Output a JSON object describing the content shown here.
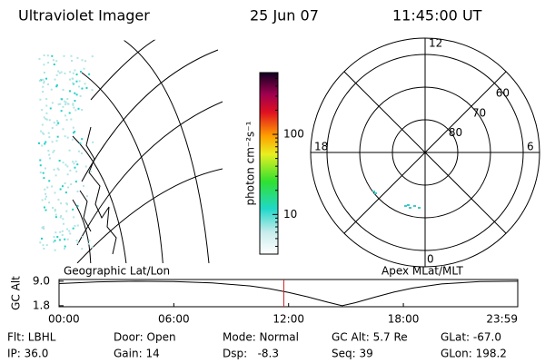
{
  "header": {
    "title": "Ultraviolet Imager",
    "date": "25 Jun 07",
    "time": "11:45:00 UT"
  },
  "image_panel": {
    "label": "Geographic Lat/Lon"
  },
  "colorbar": {
    "label": "photon cm⁻²s⁻¹",
    "scale": "log",
    "lim": [
      3.2,
      590
    ],
    "ticks": [
      10,
      100
    ]
  },
  "polar": {
    "label": "Apex MLat/MLT",
    "hour_labels": {
      "top": "12",
      "left": "18",
      "right": "6",
      "bottom": "0"
    },
    "rings": [
      80,
      70,
      60
    ]
  },
  "chart_data": {
    "type": "line",
    "y_label": "GC Alt",
    "x": [
      0,
      2,
      4,
      6,
      8,
      10,
      11,
      12,
      13,
      14,
      14.8,
      15.5,
      16.5,
      17.5,
      18.5,
      20,
      22,
      23.98
    ],
    "series": [
      {
        "name": "GC Alt",
        "color": "#000000",
        "values": [
          8.3,
          8.8,
          9.0,
          8.9,
          8.5,
          7.6,
          6.8,
          5.7,
          4.4,
          2.9,
          1.8,
          2.7,
          4.3,
          5.8,
          7.0,
          8.2,
          8.9,
          9.0
        ]
      }
    ],
    "xlim": [
      0,
      23.98
    ],
    "xticks": [
      {
        "value": 0,
        "label": "00:00"
      },
      {
        "value": 6,
        "label": "06:00"
      },
      {
        "value": 12,
        "label": "12:00"
      },
      {
        "value": 18,
        "label": "18:00"
      },
      {
        "value": 23.98,
        "label": "23:59"
      }
    ],
    "ylim": [
      1.5,
      9.5
    ],
    "yticks": [
      {
        "value": 9,
        "label": "9.0"
      },
      1.8
    ],
    "marker_x": 11.75,
    "marker_color": "#d02020"
  },
  "info": {
    "rows": [
      [
        "Flt: LBHL",
        "Door: Open",
        "Mode: Normal",
        "GC Alt: 5.7 Re",
        "GLat: -67.0"
      ],
      [
        "IP: 36.0",
        "Gain: 14",
        "Dsp:   -8.3",
        "Seq: 39",
        "GLon: 198.2"
      ]
    ]
  }
}
